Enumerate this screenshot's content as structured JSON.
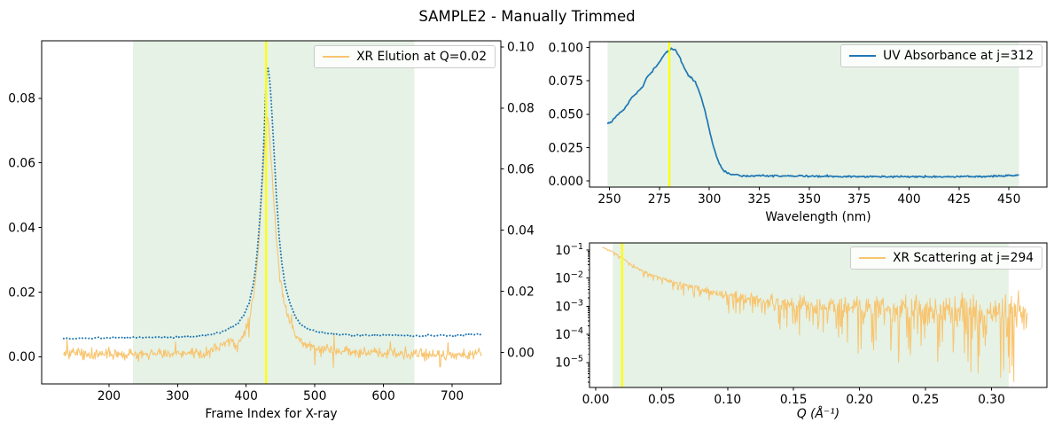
{
  "figure": {
    "title": "SAMPLE2 - Manually Trimmed",
    "background": "#ffffff",
    "colors": {
      "xr": "#f8c46e",
      "uv": "#1f77b4",
      "marker": "#ffff00",
      "shade": "#008000",
      "shade_opacity": 0.1,
      "spine": "#000000",
      "text": "#000000"
    }
  },
  "chart_data": [
    {
      "id": "xr-elution",
      "type": "line",
      "legend_label": "XR Elution at Q=0.02",
      "xlabel": "Frame Index for X-ray",
      "xlim": [
        102,
        771
      ],
      "x_ticks": {
        "values": [
          200,
          300,
          400,
          500,
          600,
          700
        ],
        "labels": [
          "200",
          "300",
          "400",
          "500",
          "600",
          "700"
        ]
      },
      "yscale": "linear",
      "ylim": [
        -0.0084,
        0.0978
      ],
      "y_ticks": {
        "values": [
          0.0,
          0.02,
          0.04,
          0.06,
          0.08
        ],
        "labels": [
          "0.00",
          "0.02",
          "0.04",
          "0.06",
          "0.08"
        ]
      },
      "ylim_right": [
        -0.0103,
        0.102
      ],
      "y_ticks_right": {
        "values": [
          0.0,
          0.02,
          0.04,
          0.06,
          0.08,
          0.1
        ],
        "labels": [
          "0.00",
          "0.02",
          "0.04",
          "0.06",
          "0.08",
          "0.10"
        ]
      },
      "shade_x": [
        235,
        645
      ],
      "marker_x": 429,
      "series": [
        {
          "name": "xr-elution-intensity",
          "axis": "left",
          "color": "xr",
          "style": "solid",
          "width": 1.1,
          "x_start": 134,
          "x_end": 743,
          "x_step": 1,
          "noise": 0.0016,
          "spike_prob": 0.05,
          "spike_amp": 0.005,
          "seed": 3,
          "keypoints": [
            [
              134,
              0.001
            ],
            [
              180,
              0.0008
            ],
            [
              240,
              0.0008
            ],
            [
              300,
              0.001
            ],
            [
              340,
              0.0015
            ],
            [
              360,
              0.003
            ],
            [
              375,
              0.0045
            ],
            [
              385,
              0.004
            ],
            [
              395,
              0.006
            ],
            [
              405,
              0.012
            ],
            [
              412,
              0.02
            ],
            [
              418,
              0.034
            ],
            [
              423,
              0.052
            ],
            [
              427,
              0.066
            ],
            [
              430,
              0.075
            ],
            [
              433,
              0.071
            ],
            [
              436,
              0.062
            ],
            [
              440,
              0.049
            ],
            [
              444,
              0.036
            ],
            [
              448,
              0.027
            ],
            [
              452,
              0.021
            ],
            [
              456,
              0.016
            ],
            [
              460,
              0.013
            ],
            [
              466,
              0.009
            ],
            [
              472,
              0.007
            ],
            [
              480,
              0.005
            ],
            [
              490,
              0.0035
            ],
            [
              500,
              0.0028
            ],
            [
              520,
              0.002
            ],
            [
              550,
              0.0015
            ],
            [
              600,
              0.001
            ],
            [
              650,
              0.0008
            ],
            [
              700,
              0.0006
            ],
            [
              743,
              0.0008
            ]
          ]
        },
        {
          "name": "uv-elution-overlay",
          "axis": "right",
          "color": "uv",
          "style": "dotted",
          "width": 2,
          "x_start": 134,
          "x_end": 743,
          "x_step": 2,
          "noise": 0.00032,
          "seed": 5,
          "keypoints": [
            [
              134,
              0.0045
            ],
            [
              200,
              0.0048
            ],
            [
              260,
              0.005
            ],
            [
              300,
              0.005
            ],
            [
              330,
              0.0053
            ],
            [
              350,
              0.006
            ],
            [
              365,
              0.0068
            ],
            [
              378,
              0.008
            ],
            [
              388,
              0.0095
            ],
            [
              396,
              0.012
            ],
            [
              404,
              0.016
            ],
            [
              410,
              0.022
            ],
            [
              415,
              0.03
            ],
            [
              420,
              0.044
            ],
            [
              424,
              0.06
            ],
            [
              427,
              0.077
            ],
            [
              429,
              0.09
            ],
            [
              431,
              0.094
            ],
            [
              433,
              0.092
            ],
            [
              436,
              0.084
            ],
            [
              440,
              0.068
            ],
            [
              444,
              0.051
            ],
            [
              448,
              0.038
            ],
            [
              452,
              0.029
            ],
            [
              456,
              0.023
            ],
            [
              461,
              0.018
            ],
            [
              466,
              0.0145
            ],
            [
              472,
              0.0115
            ],
            [
              480,
              0.0092
            ],
            [
              490,
              0.0078
            ],
            [
              500,
              0.007
            ],
            [
              515,
              0.0064
            ],
            [
              530,
              0.006
            ],
            [
              560,
              0.0057
            ],
            [
              600,
              0.0056
            ],
            [
              650,
              0.0055
            ],
            [
              700,
              0.0056
            ],
            [
              743,
              0.006
            ]
          ]
        }
      ]
    },
    {
      "id": "uv-absorbance",
      "type": "line",
      "legend_label": "UV Absorbance at j=312",
      "xlabel": "Wavelength (nm)",
      "xlim": [
        240,
        469
      ],
      "x_ticks": {
        "values": [
          250,
          275,
          300,
          325,
          350,
          375,
          400,
          425,
          450
        ],
        "labels": [
          "250",
          "275",
          "300",
          "325",
          "350",
          "375",
          "400",
          "425",
          "450"
        ]
      },
      "yscale": "linear",
      "ylim": [
        -0.0045,
        0.1043
      ],
      "y_ticks": {
        "values": [
          0.0,
          0.025,
          0.05,
          0.075,
          0.1
        ],
        "labels": [
          "0.000",
          "0.025",
          "0.050",
          "0.075",
          "0.100"
        ]
      },
      "shade_x": [
        249,
        455
      ],
      "marker_x": 280,
      "series": [
        {
          "name": "uv-spectrum",
          "axis": "left",
          "color": "uv",
          "style": "solid",
          "width": 1.7,
          "x_start": 249,
          "x_end": 455,
          "x_step": 0.5,
          "noise": 0.0007,
          "seed": 9,
          "keypoints": [
            [
              249,
              0.043
            ],
            [
              251,
              0.044
            ],
            [
              253,
              0.048
            ],
            [
              255,
              0.051
            ],
            [
              257,
              0.053
            ],
            [
              259,
              0.057
            ],
            [
              261,
              0.062
            ],
            [
              263,
              0.065
            ],
            [
              265,
              0.068
            ],
            [
              267,
              0.072
            ],
            [
              269,
              0.078
            ],
            [
              271,
              0.081
            ],
            [
              273,
              0.085
            ],
            [
              275,
              0.089
            ],
            [
              277,
              0.094
            ],
            [
              279,
              0.097
            ],
            [
              281,
              0.099
            ],
            [
              283,
              0.098
            ],
            [
              285,
              0.093
            ],
            [
              287,
              0.086
            ],
            [
              289,
              0.08
            ],
            [
              291,
              0.077
            ],
            [
              293,
              0.074
            ],
            [
              295,
              0.067
            ],
            [
              297,
              0.057
            ],
            [
              299,
              0.045
            ],
            [
              301,
              0.032
            ],
            [
              303,
              0.021
            ],
            [
              305,
              0.013
            ],
            [
              307,
              0.008
            ],
            [
              309,
              0.006
            ],
            [
              311,
              0.005
            ],
            [
              314,
              0.0042
            ],
            [
              318,
              0.0038
            ],
            [
              325,
              0.004
            ],
            [
              340,
              0.0038
            ],
            [
              360,
              0.0036
            ],
            [
              380,
              0.0034
            ],
            [
              400,
              0.0032
            ],
            [
              420,
              0.0033
            ],
            [
              440,
              0.0035
            ],
            [
              450,
              0.004
            ],
            [
              455,
              0.0045
            ]
          ]
        }
      ]
    },
    {
      "id": "xr-scattering",
      "type": "line",
      "legend_label": "XR Scattering at j=294",
      "xlabel": "Q (Å⁻¹)",
      "xlim": [
        -0.0047,
        0.342
      ],
      "x_ticks": {
        "values": [
          0.0,
          0.05,
          0.1,
          0.15,
          0.2,
          0.25,
          0.3
        ],
        "labels": [
          "0.00",
          "0.05",
          "0.10",
          "0.15",
          "0.20",
          "0.25",
          "0.30"
        ]
      },
      "yscale": "log",
      "ylim": [
        1.3e-06,
        0.179
      ],
      "y_ticks": {
        "values": [
          0.1,
          0.01,
          0.001,
          0.0001,
          1e-05
        ],
        "labels": [
          "10^−1",
          "10^−2",
          "10^−3",
          "10^−4",
          "10^−5"
        ]
      },
      "log_minor_ticks": true,
      "shade_x": [
        0.013,
        0.313
      ],
      "marker_x": 0.02,
      "series": [
        {
          "name": "scattering-intensity",
          "axis": "left",
          "color": "xr",
          "style": "solid",
          "width": 1.0,
          "x_start": 0.005,
          "x_end": 0.327,
          "x_step": 0.00045,
          "log_keypoints": true,
          "noise_base": 0.02,
          "noise_scale": 1.25,
          "noise_power": 1.25,
          "dip_prob": 0.22,
          "dip_scale": 2.1,
          "seed": 13,
          "keypoints": [
            [
              0.005,
              -0.9
            ],
            [
              0.008,
              -0.95
            ],
            [
              0.011,
              -1.02
            ],
            [
              0.015,
              -1.12
            ],
            [
              0.02,
              -1.28
            ],
            [
              0.025,
              -1.45
            ],
            [
              0.03,
              -1.6
            ],
            [
              0.04,
              -1.85
            ],
            [
              0.05,
              -2.0
            ],
            [
              0.06,
              -2.15
            ],
            [
              0.07,
              -2.28
            ],
            [
              0.085,
              -2.45
            ],
            [
              0.1,
              -2.6
            ],
            [
              0.12,
              -2.75
            ],
            [
              0.15,
              -2.9
            ],
            [
              0.18,
              -3.0
            ],
            [
              0.22,
              -3.08
            ],
            [
              0.27,
              -3.15
            ],
            [
              0.327,
              -3.2
            ]
          ]
        }
      ]
    }
  ]
}
